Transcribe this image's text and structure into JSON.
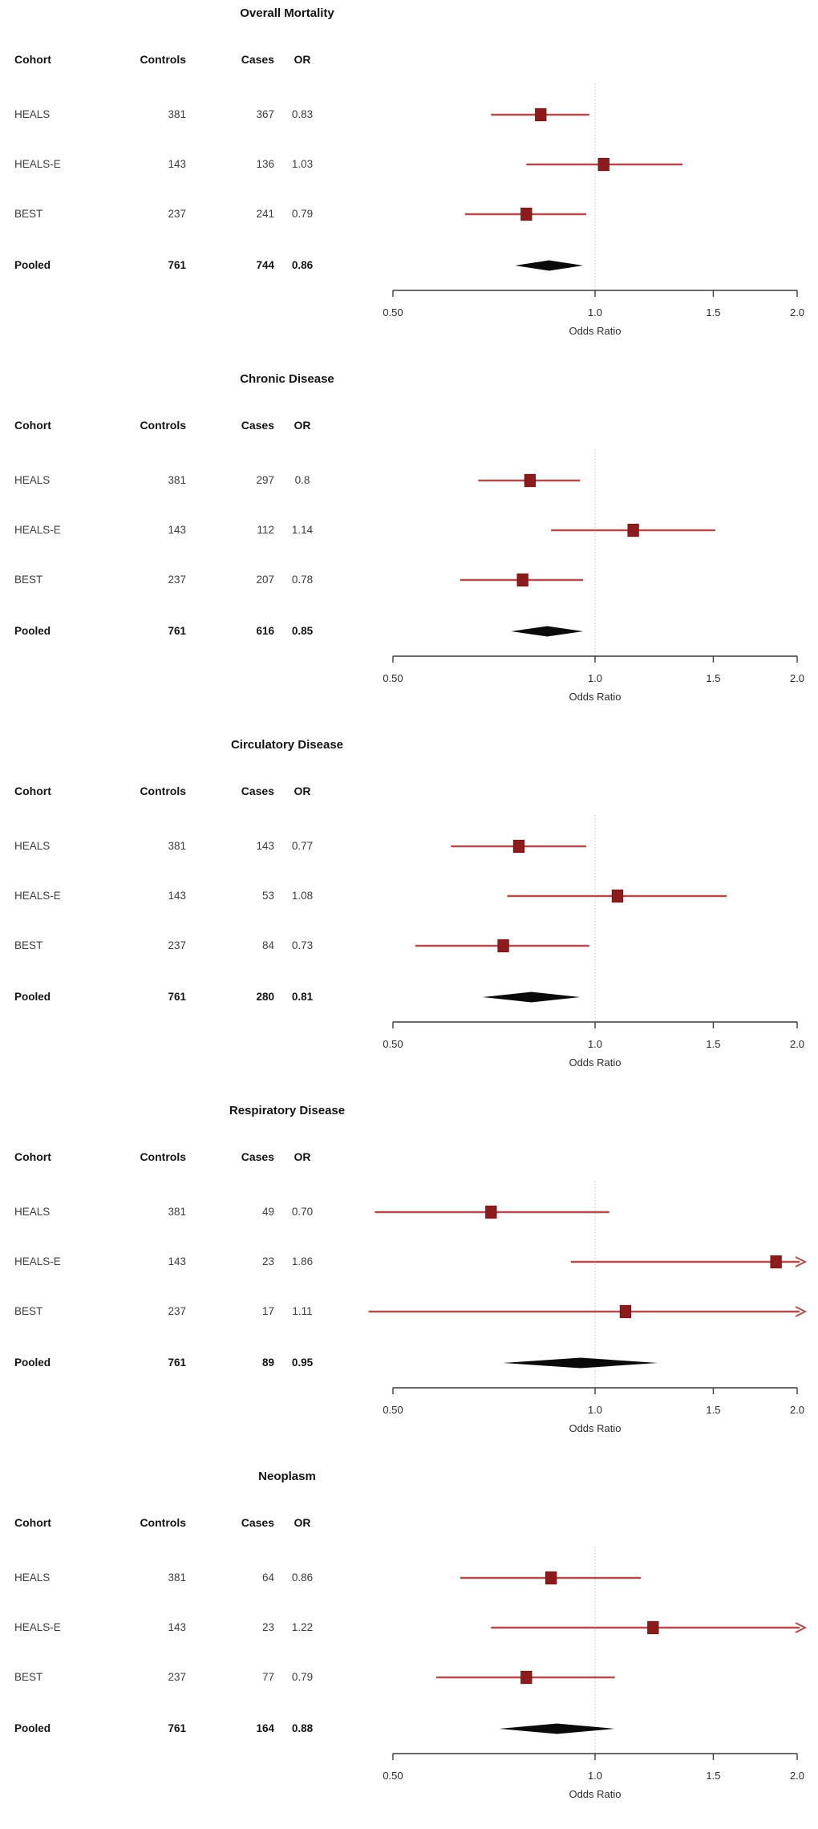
{
  "colors": {
    "marker_red": "#8e1b1b",
    "ci_line_red": "#b14d4d",
    "pooled_diamond_black": "#0a0a0a",
    "reference_line_gray": "#c6c6c6",
    "axis_gray": "#3c3c3c"
  },
  "table_headers": [
    "Cohort",
    "Controls",
    "Cases",
    "OR"
  ],
  "axis": {
    "label": "Odds Ratio",
    "scale": "log",
    "min": 0.5,
    "max": 2.0,
    "reference_value": 1.0,
    "tick_values": [
      0.5,
      1.0,
      1.5,
      2.0
    ],
    "tick_labels": [
      "0.50",
      "1.0",
      "1.5",
      "2.0"
    ]
  },
  "chart_data": [
    {
      "type": "scatter",
      "subtype": "forest-plot",
      "title": "Overall Mortality",
      "xlabel": "Odds Ratio",
      "xscale": "log",
      "xlim": [
        0.5,
        2.0
      ],
      "rows": [
        {
          "cohort": "HEALS",
          "controls": "381",
          "cases": "367",
          "or_label": "0.83",
          "or": 0.83,
          "ci_low": 0.7,
          "ci_high": 0.98,
          "arrow_high": false
        },
        {
          "cohort": "HEALS-E",
          "controls": "143",
          "cases": "136",
          "or_label": "1.03",
          "or": 1.03,
          "ci_low": 0.79,
          "ci_high": 1.35,
          "arrow_high": false
        },
        {
          "cohort": "BEST",
          "controls": "237",
          "cases": "241",
          "or_label": "0.79",
          "or": 0.79,
          "ci_low": 0.64,
          "ci_high": 0.97,
          "arrow_high": false
        }
      ],
      "pooled": {
        "cohort": "Pooled",
        "controls": "761",
        "cases": "744",
        "or_label": "0.86",
        "or": 0.86,
        "ci_low": 0.76,
        "ci_high": 0.96
      }
    },
    {
      "type": "scatter",
      "subtype": "forest-plot",
      "title": "Chronic Disease",
      "xlabel": "Odds Ratio",
      "xscale": "log",
      "xlim": [
        0.5,
        2.0
      ],
      "rows": [
        {
          "cohort": "HEALS",
          "controls": "381",
          "cases": "297",
          "or_label": "0.8",
          "or": 0.8,
          "ci_low": 0.67,
          "ci_high": 0.95,
          "arrow_high": false
        },
        {
          "cohort": "HEALS-E",
          "controls": "143",
          "cases": "112",
          "or_label": "1.14",
          "or": 1.14,
          "ci_low": 0.86,
          "ci_high": 1.51,
          "arrow_high": false
        },
        {
          "cohort": "BEST",
          "controls": "237",
          "cases": "207",
          "or_label": "0.78",
          "or": 0.78,
          "ci_low": 0.63,
          "ci_high": 0.96,
          "arrow_high": false
        }
      ],
      "pooled": {
        "cohort": "Pooled",
        "controls": "761",
        "cases": "616",
        "or_label": "0.85",
        "or": 0.85,
        "ci_low": 0.75,
        "ci_high": 0.96
      }
    },
    {
      "type": "scatter",
      "subtype": "forest-plot",
      "title": "Circulatory Disease",
      "xlabel": "Odds Ratio",
      "xscale": "log",
      "xlim": [
        0.5,
        2.0
      ],
      "rows": [
        {
          "cohort": "HEALS",
          "controls": "381",
          "cases": "143",
          "or_label": "0.77",
          "or": 0.77,
          "ci_low": 0.61,
          "ci_high": 0.97,
          "arrow_high": false
        },
        {
          "cohort": "HEALS-E",
          "controls": "143",
          "cases": "53",
          "or_label": "1.08",
          "or": 1.08,
          "ci_low": 0.74,
          "ci_high": 1.57,
          "arrow_high": false
        },
        {
          "cohort": "BEST",
          "controls": "237",
          "cases": "84",
          "or_label": "0.73",
          "or": 0.73,
          "ci_low": 0.54,
          "ci_high": 0.98,
          "arrow_high": false
        }
      ],
      "pooled": {
        "cohort": "Pooled",
        "controls": "761",
        "cases": "280",
        "or_label": "0.81",
        "or": 0.81,
        "ci_low": 0.68,
        "ci_high": 0.95
      }
    },
    {
      "type": "scatter",
      "subtype": "forest-plot",
      "title": "Respiratory Disease",
      "xlabel": "Odds Ratio",
      "xscale": "log",
      "xlim": [
        0.5,
        2.0
      ],
      "rows": [
        {
          "cohort": "HEALS",
          "controls": "381",
          "cases": "49",
          "or_label": "0.70",
          "or": 0.7,
          "ci_low": 0.47,
          "ci_high": 1.05,
          "arrow_high": false
        },
        {
          "cohort": "HEALS-E",
          "controls": "143",
          "cases": "23",
          "or_label": "1.86",
          "or": 1.86,
          "ci_low": 0.92,
          "ci_high": null,
          "arrow_high": true
        },
        {
          "cohort": "BEST",
          "controls": "237",
          "cases": "17",
          "or_label": "1.11",
          "or": 1.11,
          "ci_low": 0.46,
          "ci_high": null,
          "arrow_high": true
        }
      ],
      "pooled": {
        "cohort": "Pooled",
        "controls": "761",
        "cases": "89",
        "or_label": "0.95",
        "or": 0.95,
        "ci_low": 0.73,
        "ci_high": 1.24
      }
    },
    {
      "type": "scatter",
      "subtype": "forest-plot",
      "title": "Neoplasm",
      "xlabel": "Odds Ratio",
      "xscale": "log",
      "xlim": [
        0.5,
        2.0
      ],
      "rows": [
        {
          "cohort": "HEALS",
          "controls": "381",
          "cases": "64",
          "or_label": "0.86",
          "or": 0.86,
          "ci_low": 0.63,
          "ci_high": 1.17,
          "arrow_high": false
        },
        {
          "cohort": "HEALS-E",
          "controls": "143",
          "cases": "23",
          "or_label": "1.22",
          "or": 1.22,
          "ci_low": 0.7,
          "ci_high": null,
          "arrow_high": true
        },
        {
          "cohort": "BEST",
          "controls": "237",
          "cases": "77",
          "or_label": "0.79",
          "or": 0.79,
          "ci_low": 0.58,
          "ci_high": 1.07,
          "arrow_high": false
        }
      ],
      "pooled": {
        "cohort": "Pooled",
        "controls": "761",
        "cases": "164",
        "or_label": "0.88",
        "or": 0.88,
        "ci_low": 0.72,
        "ci_high": 1.07
      }
    }
  ]
}
